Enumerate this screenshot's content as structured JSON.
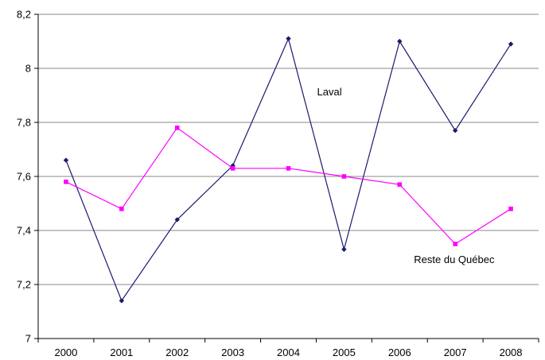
{
  "chart_data": {
    "type": "line",
    "categories": [
      "2000",
      "2001",
      "2002",
      "2003",
      "2004",
      "2005",
      "2006",
      "2007",
      "2008"
    ],
    "ylim": [
      7,
      8.2
    ],
    "yticks": [
      7,
      7.2,
      7.4,
      7.6,
      7.8,
      8,
      8.2
    ],
    "ytick_labels": [
      "7",
      "7,2",
      "7,4",
      "7,6",
      "7,8",
      "8",
      "8,2"
    ],
    "grid": true,
    "legend": "none",
    "series": [
      {
        "name": "Laval",
        "color": "#1a1a6e",
        "marker": "diamond",
        "values": [
          7.66,
          7.14,
          7.44,
          7.64,
          8.11,
          7.33,
          8.1,
          7.77,
          8.09
        ]
      },
      {
        "name": "Reste du Québec",
        "color": "#ff00ff",
        "marker": "square",
        "values": [
          7.58,
          7.48,
          7.78,
          7.63,
          7.63,
          7.6,
          7.57,
          7.35,
          7.48
        ]
      }
    ],
    "annotations": [
      {
        "text": "Laval",
        "series": 0
      },
      {
        "text": "Reste du Québec",
        "series": 1
      }
    ]
  }
}
